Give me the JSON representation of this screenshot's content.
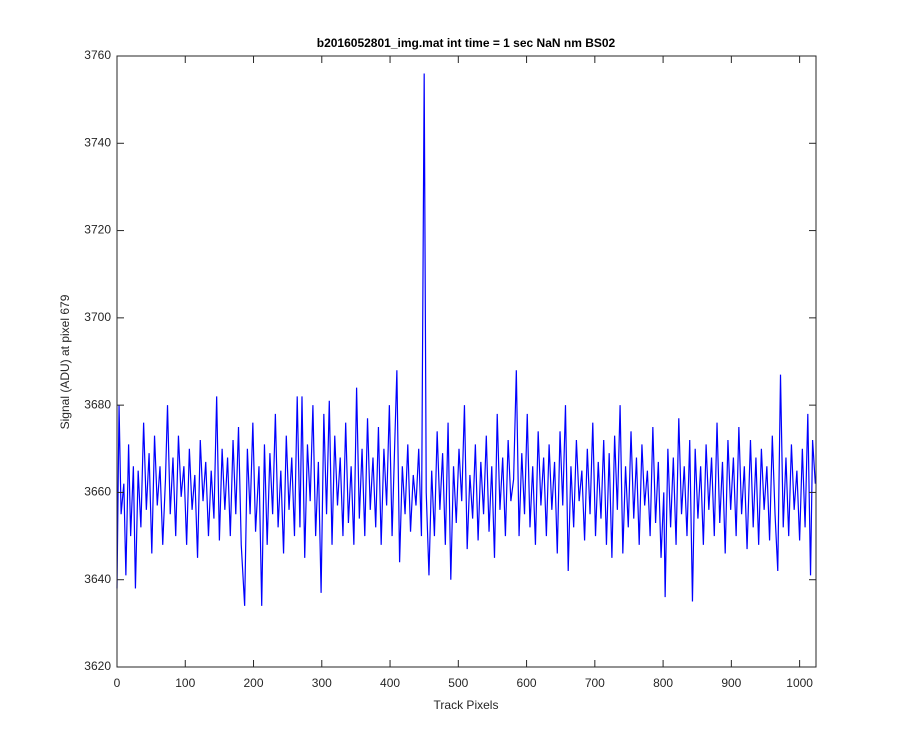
{
  "chart_data": {
    "type": "line",
    "title": "b2016052801_img.mat int time = 1 sec  NaN nm BS02",
    "xlabel": "Track Pixels",
    "ylabel": "Signal (ADU) at pixel 679",
    "xlim": [
      0,
      1024
    ],
    "ylim": [
      3620,
      3760
    ],
    "xticks": [
      0,
      100,
      200,
      300,
      400,
      500,
      600,
      700,
      800,
      900,
      1000
    ],
    "yticks": [
      3620,
      3640,
      3660,
      3680,
      3700,
      3720,
      3740,
      3760
    ],
    "x": [
      0,
      3,
      6,
      10,
      13,
      17,
      20,
      24,
      27,
      31,
      35,
      39,
      43,
      47,
      51,
      55,
      59,
      63,
      67,
      71,
      74,
      78,
      82,
      86,
      90,
      94,
      98,
      102,
      106,
      110,
      114,
      118,
      122,
      126,
      130,
      134,
      138,
      142,
      146,
      150,
      154,
      158,
      162,
      166,
      170,
      174,
      178,
      182,
      187,
      191,
      195,
      199,
      203,
      208,
      212,
      216,
      220,
      224,
      228,
      232,
      236,
      240,
      244,
      248,
      252,
      256,
      260,
      264,
      268,
      271,
      275,
      279,
      283,
      287,
      291,
      295,
      299,
      303,
      307,
      311,
      315,
      319,
      323,
      327,
      331,
      335,
      339,
      343,
      347,
      351,
      355,
      359,
      363,
      367,
      371,
      375,
      379,
      383,
      387,
      391,
      395,
      399,
      403,
      407,
      410,
      414,
      418,
      422,
      426,
      430,
      434,
      438,
      442,
      446,
      450,
      453,
      457,
      461,
      465,
      469,
      473,
      477,
      481,
      485,
      489,
      493,
      497,
      501,
      505,
      509,
      513,
      517,
      521,
      525,
      529,
      533,
      537,
      541,
      545,
      549,
      553,
      557,
      561,
      565,
      569,
      573,
      577,
      581,
      585,
      589,
      593,
      597,
      601,
      605,
      609,
      613,
      617,
      621,
      625,
      629,
      633,
      637,
      641,
      645,
      649,
      653,
      657,
      661,
      665,
      669,
      673,
      677,
      681,
      685,
      689,
      693,
      697,
      701,
      705,
      709,
      713,
      717,
      721,
      725,
      729,
      733,
      737,
      741,
      745,
      749,
      753,
      757,
      761,
      765,
      769,
      773,
      777,
      781,
      785,
      789,
      793,
      797,
      801,
      803,
      807,
      811,
      815,
      819,
      823,
      827,
      831,
      835,
      839,
      843,
      847,
      851,
      855,
      859,
      863,
      867,
      871,
      875,
      879,
      883,
      887,
      891,
      895,
      899,
      903,
      907,
      911,
      915,
      919,
      923,
      928,
      932,
      936,
      940,
      944,
      948,
      952,
      956,
      960,
      964,
      968,
      972,
      976,
      980,
      984,
      988,
      992,
      996,
      1000,
      1004,
      1008,
      1012,
      1016,
      1019,
      1023
    ],
    "series": [
      {
        "color": "#0000ff",
        "values": [
          3638,
          3680,
          3655,
          3662,
          3641,
          3671,
          3650,
          3666,
          3638,
          3665,
          3652,
          3676,
          3656,
          3669,
          3646,
          3673,
          3657,
          3666,
          3648,
          3663,
          3680,
          3655,
          3668,
          3650,
          3673,
          3659,
          3666,
          3648,
          3670,
          3656,
          3664,
          3645,
          3672,
          3658,
          3667,
          3650,
          3665,
          3654,
          3682,
          3649,
          3670,
          3656,
          3668,
          3650,
          3672,
          3655,
          3675,
          3648,
          3634,
          3670,
          3655,
          3676,
          3651,
          3666,
          3634,
          3671,
          3648,
          3669,
          3655,
          3678,
          3652,
          3665,
          3646,
          3673,
          3656,
          3668,
          3650,
          3682,
          3652,
          3682,
          3645,
          3671,
          3658,
          3680,
          3650,
          3667,
          3637,
          3678,
          3655,
          3681,
          3648,
          3673,
          3657,
          3668,
          3650,
          3676,
          3653,
          3666,
          3648,
          3684,
          3654,
          3670,
          3650,
          3677,
          3656,
          3668,
          3652,
          3675,
          3648,
          3670,
          3657,
          3680,
          3650,
          3672,
          3688,
          3644,
          3666,
          3655,
          3671,
          3651,
          3664,
          3657,
          3670,
          3650,
          3756,
          3660,
          3641,
          3665,
          3650,
          3674,
          3656,
          3669,
          3648,
          3676,
          3640,
          3666,
          3653,
          3670,
          3658,
          3680,
          3647,
          3664,
          3654,
          3671,
          3649,
          3667,
          3655,
          3673,
          3651,
          3666,
          3645,
          3678,
          3656,
          3668,
          3650,
          3672,
          3658,
          3663,
          3688,
          3650,
          3669,
          3655,
          3678,
          3652,
          3666,
          3648,
          3674,
          3657,
          3668,
          3650,
          3671,
          3656,
          3667,
          3646,
          3674,
          3657,
          3680,
          3642,
          3666,
          3652,
          3672,
          3658,
          3665,
          3649,
          3670,
          3655,
          3676,
          3650,
          3667,
          3654,
          3672,
          3648,
          3669,
          3645,
          3673,
          3656,
          3680,
          3646,
          3666,
          3652,
          3674,
          3654,
          3668,
          3648,
          3671,
          3657,
          3665,
          3650,
          3675,
          3653,
          3667,
          3645,
          3660,
          3636,
          3670,
          3652,
          3668,
          3648,
          3677,
          3655,
          3666,
          3650,
          3672,
          3635,
          3670,
          3654,
          3666,
          3648,
          3671,
          3656,
          3668,
          3650,
          3676,
          3653,
          3667,
          3646,
          3672,
          3656,
          3668,
          3650,
          3675,
          3655,
          3666,
          3647,
          3672,
          3652,
          3668,
          3648,
          3670,
          3656,
          3666,
          3649,
          3673,
          3655,
          3642,
          3687,
          3652,
          3668,
          3650,
          3671,
          3656,
          3665,
          3649,
          3670,
          3652,
          3678,
          3641,
          3672,
          3662
        ]
      }
    ]
  }
}
